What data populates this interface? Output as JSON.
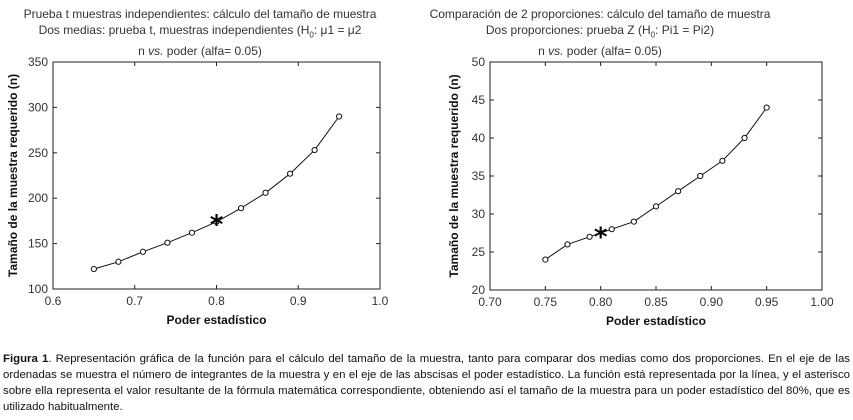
{
  "chart_data": [
    {
      "type": "line",
      "title_lines": [
        "Prueba t muestras independientes: cálculo del tamaño de muestra",
        "Dos medias: prueba t, muestras independientes (H",
        "0",
        ": μ1 = μ2",
        "n ",
        "vs.",
        " poder (alfa= 0.05)"
      ],
      "title": {
        "line1": "Prueba t muestras independientes: cálculo del tamaño de muestra",
        "line2_a": "Dos medias: prueba t, muestras independientes (H",
        "line2_sub": "0",
        "line2_b": ": μ1 = μ2",
        "line3_a": "n ",
        "line3_vs": "vs.",
        "line3_b": " poder (alfa= 0.05)"
      },
      "xlabel": "Poder estadístico",
      "ylabel": "Tamaño de la muestra requerido (n)",
      "xlim": [
        0.6,
        1.0
      ],
      "ylim": [
        100,
        350
      ],
      "xticks": [
        "0.6",
        "0.7",
        "0.8",
        "0.9",
        "1.0"
      ],
      "yticks": [
        "100",
        "150",
        "200",
        "250",
        "300",
        "350"
      ],
      "x": [
        0.65,
        0.68,
        0.71,
        0.74,
        0.77,
        0.8,
        0.83,
        0.86,
        0.89,
        0.92,
        0.95
      ],
      "y": [
        122,
        130,
        141,
        151,
        162,
        174,
        189,
        206,
        227,
        253,
        290
      ],
      "marker_x": 0.8,
      "marker_y": 174,
      "grid": false
    },
    {
      "type": "line",
      "title": {
        "line1": "Comparación de 2 proporciones: cálculo del tamaño de muestra",
        "line2_a": "Dos proporciones: prueba Z (H",
        "line2_sub": "0",
        "line2_b": ": Pi1 = Pi2)",
        "line3_a": "n ",
        "line3_vs": "vs.",
        "line3_b": " poder (alfa= 0.05)"
      },
      "xlabel": "Poder estadístico",
      "ylabel": "Tamaño de la muestra requerido (n)",
      "xlim": [
        0.7,
        1.0
      ],
      "ylim": [
        20,
        50
      ],
      "xticks": [
        "0.70",
        "0.75",
        "0.80",
        "0.85",
        "0.90",
        "0.95",
        "1.00"
      ],
      "yticks": [
        "20",
        "25",
        "30",
        "35",
        "40",
        "45",
        "50"
      ],
      "x": [
        0.75,
        0.77,
        0.79,
        0.81,
        0.83,
        0.85,
        0.87,
        0.89,
        0.91,
        0.93,
        0.95
      ],
      "y": [
        24,
        26,
        27,
        28,
        29,
        31,
        33,
        35,
        37,
        40,
        44
      ],
      "marker_x": 0.8,
      "marker_y": 27.3,
      "grid": false
    }
  ],
  "caption": {
    "label": "Figura 1",
    "text": ". Representación gráfica de la función para el cálculo del tamaño de la muestra, tanto para comparar dos medias como dos proporciones. En el eje de las ordenadas se muestra el número de integrantes de la muestra y en el eje de las abscisas el poder estadístico. La función está representada por la línea, y el asterisco sobre ella representa el valor resultante de la fórmula matemática correspondiente, obteniendo así el tamaño de la muestra para un poder estadístico del 80%, que es utilizado habitualmente."
  }
}
